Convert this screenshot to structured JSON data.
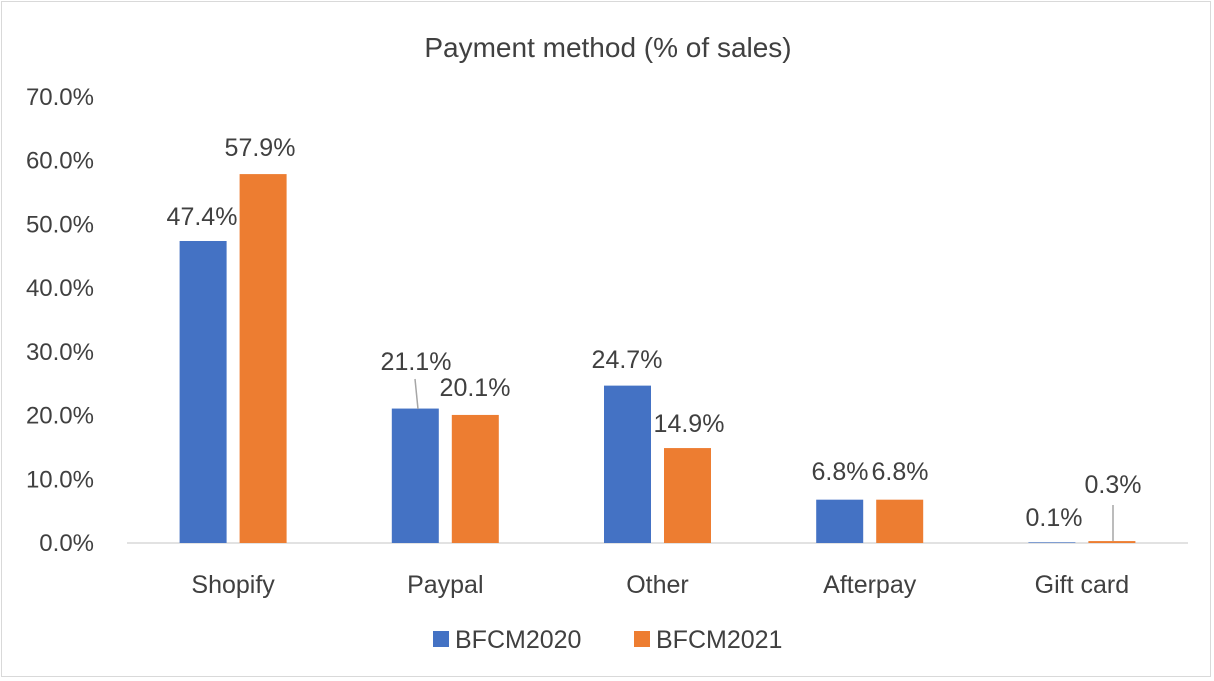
{
  "chart_data": {
    "type": "bar",
    "title": "Payment method (% of sales)",
    "xlabel": "",
    "ylabel": "",
    "categories": [
      "Shopify",
      "Paypal",
      "Other",
      "Afterpay",
      "Gift card"
    ],
    "series": [
      {
        "name": "BFCM2020",
        "color": "#4472c4",
        "values": [
          47.4,
          21.1,
          24.7,
          6.8,
          0.1
        ],
        "labels": [
          "47.4%",
          "21.1%",
          "24.7%",
          "6.8%",
          "0.1%"
        ]
      },
      {
        "name": "BFCM2021",
        "color": "#ed7d31",
        "values": [
          57.9,
          20.1,
          14.9,
          6.8,
          0.3
        ],
        "labels": [
          "57.9%",
          "20.1%",
          "14.9%",
          "6.8%",
          "0.3%"
        ]
      }
    ],
    "ylim": [
      0,
      70
    ],
    "yticks": [
      "0.0%",
      "10.0%",
      "20.0%",
      "30.0%",
      "40.0%",
      "50.0%",
      "60.0%",
      "70.0%"
    ],
    "grid": false,
    "legend": "bottom"
  }
}
